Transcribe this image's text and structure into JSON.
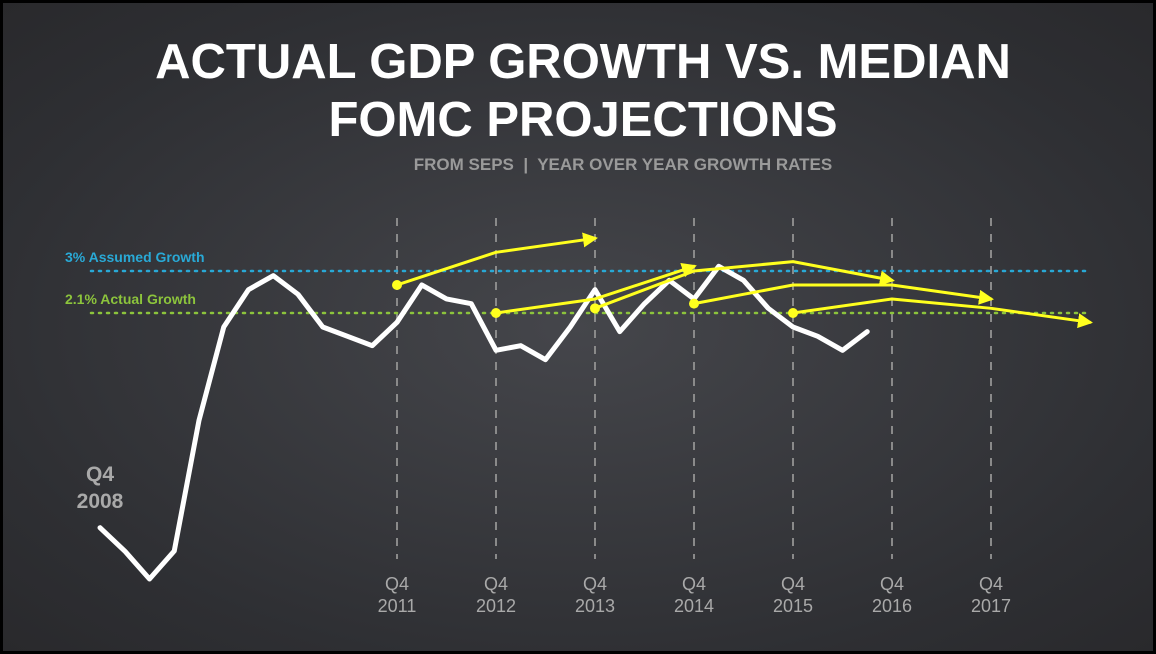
{
  "chart_data": {
    "type": "line",
    "title": "ACTUAL GDP GROWTH VS. MEDIAN FOMC PROJECTIONS",
    "subtitle": "FROM SEPS  |  YEAR OVER YEAR GROWTH RATES",
    "xlim": [
      0,
      40
    ],
    "ylim": [
      -4,
      4
    ],
    "xticks": [
      {
        "value": 12,
        "label": "Q4 2011"
      },
      {
        "value": 16,
        "label": "Q4 2012"
      },
      {
        "value": 20,
        "label": "Q4 2013"
      },
      {
        "value": 24,
        "label": "Q4 2014"
      },
      {
        "value": 28,
        "label": "Q4 2015"
      },
      {
        "value": 32,
        "label": "Q4 2016"
      },
      {
        "value": 36,
        "label": "Q4 2017"
      }
    ],
    "grid": true,
    "reference_lines": [
      {
        "label": "3% Assumed Growth",
        "value": 3,
        "color": "#29a9d6"
      },
      {
        "label": "2.1% Actual Growth",
        "value": 2.1,
        "color": "#8cc43c"
      }
    ],
    "annotations": [
      {
        "text": "Q4 2008",
        "x": 0
      }
    ],
    "series": [
      {
        "color": "#ffffff",
        "marker": "none",
        "x": [
          0,
          1,
          2,
          3,
          4,
          5,
          6,
          7,
          8,
          9,
          10,
          11,
          12,
          13,
          14,
          15,
          16,
          17,
          18,
          19,
          20,
          21,
          22,
          23,
          24,
          25,
          26,
          27,
          28,
          29,
          30,
          31
        ],
        "values": [
          -2.5,
          -3.0,
          -3.6,
          -3.0,
          -0.2,
          1.8,
          2.6,
          2.9,
          2.5,
          1.8,
          1.6,
          1.4,
          1.9,
          2.7,
          2.4,
          2.3,
          1.3,
          1.4,
          1.1,
          1.8,
          2.6,
          1.7,
          2.3,
          2.8,
          2.4,
          3.1,
          2.8,
          2.2,
          1.8,
          1.6,
          1.3,
          1.7
        ]
      },
      {
        "color": "#ffff1e",
        "marker": "dot-arrow",
        "x": [
          12,
          16,
          20
        ],
        "values": [
          2.7,
          3.4,
          3.7
        ]
      },
      {
        "color": "#ffff1e",
        "marker": "dot-arrow",
        "x": [
          16,
          20,
          24
        ],
        "values": [
          2.1,
          2.4,
          3.1
        ]
      },
      {
        "color": "#ffff1e",
        "marker": "dot-arrow",
        "x": [
          20,
          24,
          28,
          32
        ],
        "values": [
          2.2,
          3.0,
          3.2,
          2.8
        ]
      },
      {
        "color": "#ffff1e",
        "marker": "dot-arrow",
        "x": [
          24,
          28,
          32,
          36
        ],
        "values": [
          2.3,
          2.7,
          2.7,
          2.4
        ]
      },
      {
        "color": "#ffff1e",
        "marker": "dot-arrow",
        "x": [
          28,
          32,
          36,
          40
        ],
        "values": [
          2.1,
          2.4,
          2.2,
          1.9
        ]
      }
    ]
  }
}
